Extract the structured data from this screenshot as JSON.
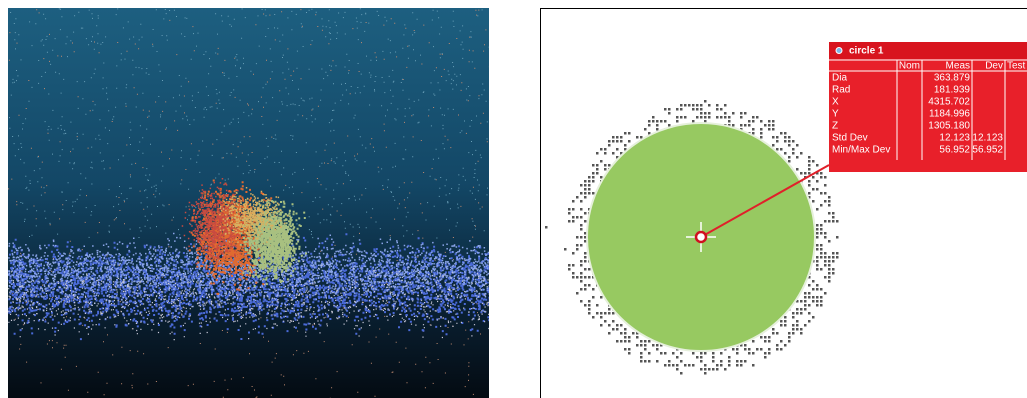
{
  "measurement": {
    "title": "circle 1",
    "columns": {
      "nom": "Nom",
      "meas": "Meas",
      "dev": "Dev",
      "test": "Test"
    },
    "rows": [
      {
        "label": "Dia",
        "meas": "363.879"
      },
      {
        "label": "Rad",
        "meas": "181.939"
      },
      {
        "label": "X",
        "meas": "4315.702"
      },
      {
        "label": "Y",
        "meas": "1184.996"
      },
      {
        "label": "Z",
        "meas": "1305.180"
      },
      {
        "label": "Std Dev",
        "meas": "12.123",
        "dev": "12.123"
      },
      {
        "label": "Min/Max Dev",
        "meas": "56.952",
        "dev": "56.952"
      }
    ]
  }
}
